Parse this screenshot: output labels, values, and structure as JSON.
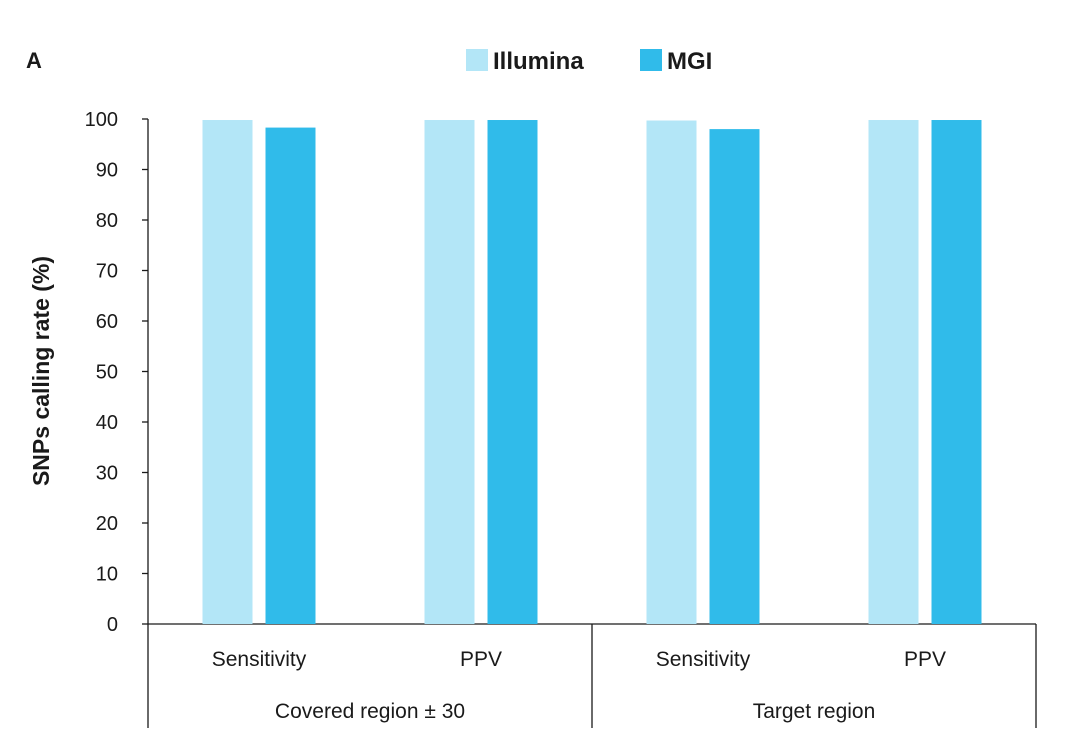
{
  "panel_label": "A",
  "chart_data": {
    "type": "bar",
    "ylabel": "SNPs calling rate (%)",
    "ylim": [
      0,
      100
    ],
    "yticks": [
      0,
      10,
      20,
      30,
      40,
      50,
      60,
      70,
      80,
      90,
      100
    ],
    "grid": false,
    "legend_position": "top-center",
    "categories": [
      "Sensitivity",
      "PPV",
      "Sensitivity",
      "PPV"
    ],
    "groups": [
      {
        "label": "Covered region ± 30",
        "categories": [
          0,
          1
        ]
      },
      {
        "label": "Target region",
        "categories": [
          2,
          3
        ]
      }
    ],
    "series": [
      {
        "name": "Illumina",
        "color": "#b3e6f7",
        "values": [
          99.8,
          99.8,
          99.7,
          99.8
        ]
      },
      {
        "name": "MGI",
        "color": "#30bbea",
        "values": [
          98.3,
          99.8,
          98.0,
          99.8
        ]
      }
    ]
  }
}
